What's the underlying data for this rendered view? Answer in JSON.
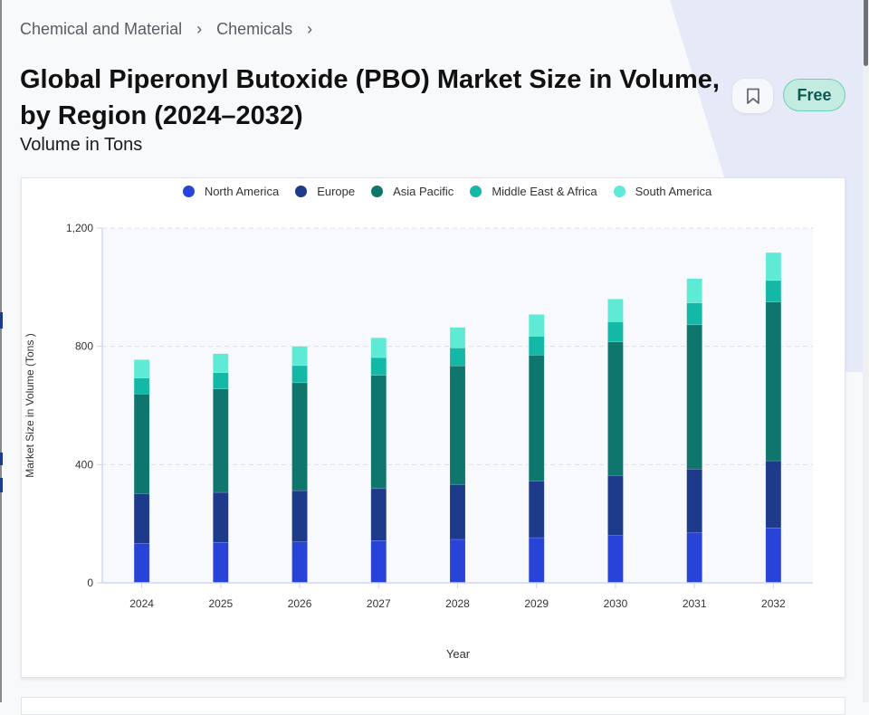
{
  "breadcrumb": {
    "items": [
      "Chemical and Material",
      "Chemicals"
    ],
    "separator": "›"
  },
  "header": {
    "title_line1": "Global Piperonyl Butoxide (PBO) Market Size in Volume,",
    "title_line2": "by Region (2024–2032)",
    "subtitle": "Volume in Tons",
    "bookmark_icon": "bookmark-icon",
    "badge": "Free"
  },
  "colors": {
    "north_america": "#2743d8",
    "europe": "#1e3a8a",
    "asia_pacific": "#0f766e",
    "middle_east_africa": "#14b8a6",
    "south_america": "#5eead4",
    "badge_bg": "#c3ebe0",
    "badge_text": "#0c5a54"
  },
  "chart_data": {
    "type": "bar",
    "stacked": true,
    "title": "Global Piperonyl Butoxide (PBO) Market Size in Volume, by Region (2024–2032)",
    "xlabel": "Year",
    "ylabel": "Market Size in Volume (Tons )",
    "ylim": [
      0,
      1200
    ],
    "yticks": [
      0,
      400,
      800,
      1200
    ],
    "ytick_labels": [
      "0",
      "400",
      "800",
      "1,200"
    ],
    "grid": true,
    "legend_position": "top-center",
    "categories": [
      "2024",
      "2025",
      "2026",
      "2027",
      "2028",
      "2029",
      "2030",
      "2031",
      "2032"
    ],
    "series": [
      {
        "name": "North America",
        "color": "#2743d8",
        "values": [
          134,
          137,
          139,
          143,
          147,
          153,
          160,
          170,
          186
        ]
      },
      {
        "name": "Europe",
        "color": "#1e3a8a",
        "values": [
          168,
          169,
          173,
          176,
          186,
          192,
          203,
          215,
          227
        ]
      },
      {
        "name": "Asia Pacific",
        "color": "#0f766e",
        "values": [
          337,
          350,
          365,
          383,
          401,
          425,
          452,
          488,
          537
        ]
      },
      {
        "name": "Middle East & Africa",
        "color": "#14b8a6",
        "values": [
          54,
          55,
          58,
          60,
          61,
          64,
          68,
          74,
          73
        ]
      },
      {
        "name": "South America",
        "color": "#5eead4",
        "values": [
          62,
          64,
          65,
          67,
          69,
          74,
          77,
          82,
          94
        ]
      }
    ]
  }
}
